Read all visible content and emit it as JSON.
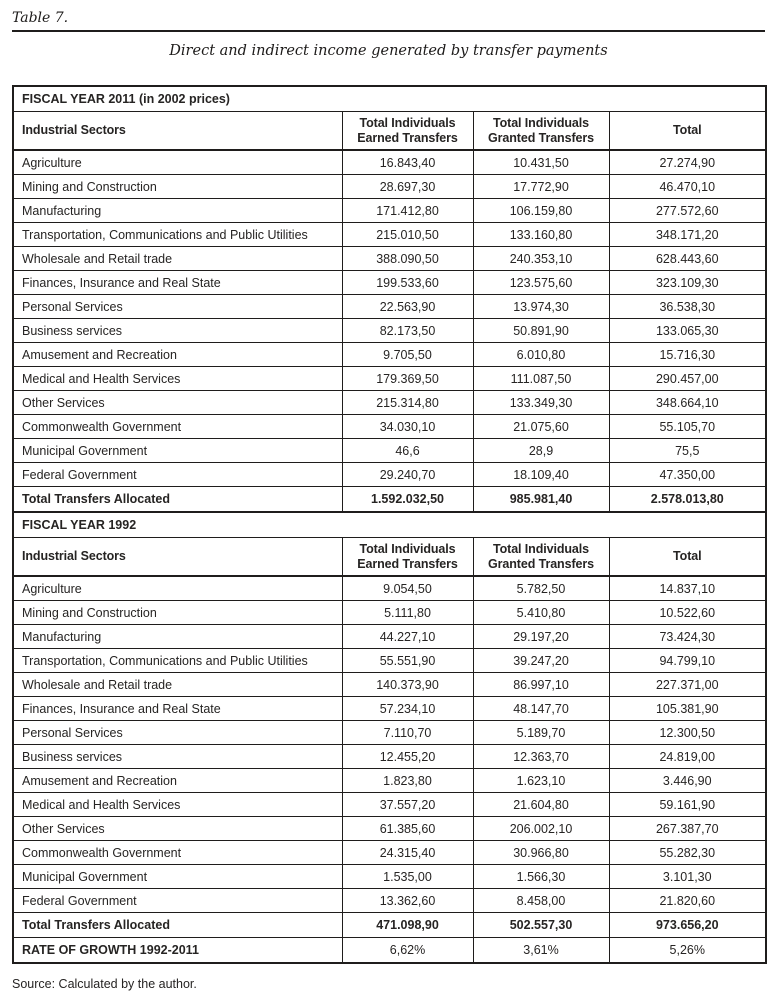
{
  "page": {
    "table_label": "Table 7.",
    "title": "Direct and indirect income generated by transfer payments",
    "source": "Source: Calculated by the author."
  },
  "table": {
    "columns": [
      "Industrial Sectors",
      "Total Individuals\nEarned Transfers",
      "Total Individuals\nGranted Transfers",
      "Total"
    ],
    "sections": [
      {
        "section_label": "FISCAL YEAR 2011 (in 2002 prices)",
        "rows": [
          {
            "label": "Agriculture",
            "values": [
              "16.843,40",
              "10.431,50",
              "27.274,90"
            ]
          },
          {
            "label": "Mining and Construction",
            "values": [
              "28.697,30",
              "17.772,90",
              "46.470,10"
            ]
          },
          {
            "label": "Manufacturing",
            "values": [
              "171.412,80",
              "106.159,80",
              "277.572,60"
            ]
          },
          {
            "label": "Transportation, Communications and Public Utilities",
            "values": [
              "215.010,50",
              "133.160,80",
              "348.171,20"
            ]
          },
          {
            "label": "Wholesale and Retail trade",
            "values": [
              "388.090,50",
              "240.353,10",
              "628.443,60"
            ]
          },
          {
            "label": "Finances, Insurance and Real State",
            "values": [
              "199.533,60",
              "123.575,60",
              "323.109,30"
            ]
          },
          {
            "label": "Personal Services",
            "values": [
              "22.563,90",
              "13.974,30",
              "36.538,30"
            ]
          },
          {
            "label": "Business services",
            "values": [
              "82.173,50",
              "50.891,90",
              "133.065,30"
            ]
          },
          {
            "label": "Amusement and Recreation",
            "values": [
              "9.705,50",
              "6.010,80",
              "15.716,30"
            ]
          },
          {
            "label": "Medical and Health Services",
            "values": [
              "179.369,50",
              "111.087,50",
              "290.457,00"
            ]
          },
          {
            "label": "Other Services",
            "values": [
              "215.314,80",
              "133.349,30",
              "348.664,10"
            ]
          },
          {
            "label": "Commonwealth Government",
            "values": [
              "34.030,10",
              "21.075,60",
              "55.105,70"
            ]
          },
          {
            "label": "Municipal Government",
            "values": [
              "46,6",
              "28,9",
              "75,5"
            ]
          },
          {
            "label": "Federal Government",
            "values": [
              "29.240,70",
              "18.109,40",
              "47.350,00"
            ]
          }
        ],
        "total_row": {
          "label": "Total Transfers Allocated",
          "values": [
            "1.592.032,50",
            "985.981,40",
            "2.578.013,80"
          ]
        }
      },
      {
        "section_label": "FISCAL YEAR 1992",
        "rows": [
          {
            "label": "Agriculture",
            "values": [
              "9.054,50",
              "5.782,50",
              "14.837,10"
            ]
          },
          {
            "label": "Mining and Construction",
            "values": [
              "5.111,80",
              "5.410,80",
              "10.522,60"
            ]
          },
          {
            "label": "Manufacturing",
            "values": [
              "44.227,10",
              "29.197,20",
              "73.424,30"
            ]
          },
          {
            "label": "Transportation, Communications and Public Utilities",
            "values": [
              "55.551,90",
              "39.247,20",
              "94.799,10"
            ]
          },
          {
            "label": "Wholesale and Retail trade",
            "values": [
              "140.373,90",
              "86.997,10",
              "227.371,00"
            ]
          },
          {
            "label": "Finances, Insurance and Real State",
            "values": [
              "57.234,10",
              "48.147,70",
              "105.381,90"
            ]
          },
          {
            "label": "Personal Services",
            "values": [
              "7.110,70",
              "5.189,70",
              "12.300,50"
            ]
          },
          {
            "label": "Business services",
            "values": [
              "12.455,20",
              "12.363,70",
              "24.819,00"
            ]
          },
          {
            "label": "Amusement and Recreation",
            "values": [
              "1.823,80",
              "1.623,10",
              "3.446,90"
            ]
          },
          {
            "label": "Medical and Health Services",
            "values": [
              "37.557,20",
              "21.604,80",
              "59.161,90"
            ]
          },
          {
            "label": "Other Services",
            "values": [
              "61.385,60",
              "206.002,10",
              "267.387,70"
            ]
          },
          {
            "label": "Commonwealth Government",
            "values": [
              "24.315,40",
              "30.966,80",
              "55.282,30"
            ]
          },
          {
            "label": "Municipal Government",
            "values": [
              "1.535,00",
              "1.566,30",
              "3.101,30"
            ]
          },
          {
            "label": "Federal Government",
            "values": [
              "13.362,60",
              "8.458,00",
              "21.820,60"
            ]
          }
        ],
        "total_row": {
          "label": "Total Transfers Allocated",
          "values": [
            "471.098,90",
            "502.557,30",
            "973.656,20"
          ]
        }
      }
    ],
    "growth_row": {
      "label": "RATE OF GROWTH 1992-2011",
      "values": [
        "6,62%",
        "3,61%",
        "5,26%"
      ]
    }
  },
  "chart_data": {
    "type": "table",
    "title": "Direct and indirect income generated by transfer payments",
    "columns": [
      "Industrial Sectors",
      "Total Individuals Earned Transfers",
      "Total Individuals Granted Transfers",
      "Total"
    ],
    "notes": "Two sections: FISCAL YEAR 2011 (in 2002 prices) and FISCAL YEAR 1992, plus RATE OF GROWTH 1992-2011 row (6,62% / 3,61% / 5,26%)"
  }
}
